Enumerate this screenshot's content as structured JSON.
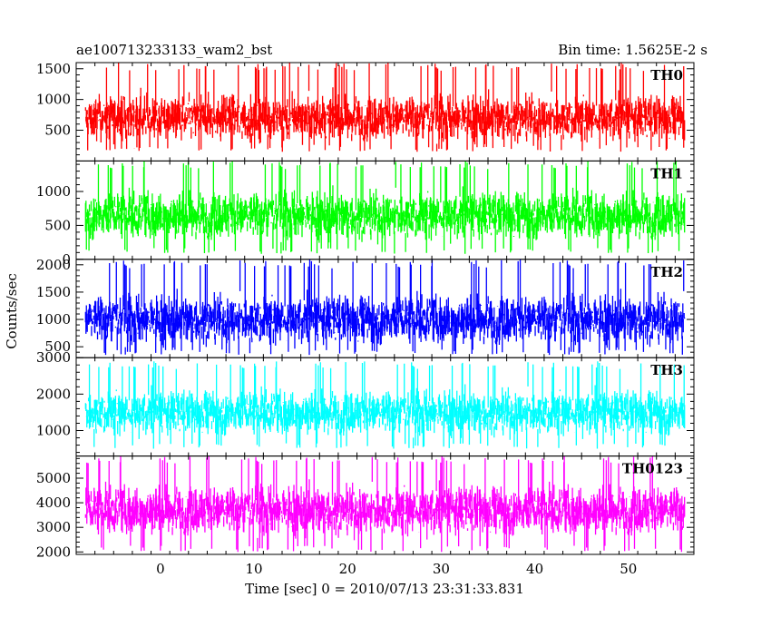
{
  "chart_data": {
    "type": "line",
    "title_left": "ae100713233133_wam2_bst",
    "title_right": "Bin time: 1.5625E-2 s",
    "xlabel": "Time [sec] 0 = 2010/07/13 23:31:33.831",
    "ylabel": "Counts/sec",
    "xlim": [
      -9,
      57
    ],
    "x_ticks": [
      0,
      10,
      20,
      30,
      40,
      50
    ],
    "x_data_range": [
      -8,
      56
    ],
    "grid": false,
    "panels": [
      {
        "name": "TH0",
        "color": "#ff0000",
        "ylim": [
          0,
          1600
        ],
        "y_ticks": [
          500,
          1000,
          1500
        ],
        "mean": 700,
        "min": 150,
        "max": 1600
      },
      {
        "name": "TH1",
        "color": "#00ff00",
        "ylim": [
          0,
          1450
        ],
        "y_ticks": [
          0,
          500,
          1000
        ],
        "mean": 650,
        "min": 80,
        "max": 1450
      },
      {
        "name": "TH2",
        "color": "#0000ff",
        "ylim": [
          300,
          2100
        ],
        "y_ticks": [
          500,
          1000,
          1500,
          2000
        ],
        "mean": 1000,
        "min": 350,
        "max": 2100
      },
      {
        "name": "TH3",
        "color": "#00ffff",
        "ylim": [
          300,
          3000
        ],
        "y_ticks": [
          1000,
          2000,
          3000
        ],
        "mean": 1500,
        "min": 500,
        "max": 2900
      },
      {
        "name": "TH0123",
        "color": "#ff00ff",
        "ylim": [
          1900,
          5900
        ],
        "y_ticks": [
          2000,
          3000,
          4000,
          5000
        ],
        "mean": 3700,
        "min": 2000,
        "max": 5900
      }
    ]
  }
}
